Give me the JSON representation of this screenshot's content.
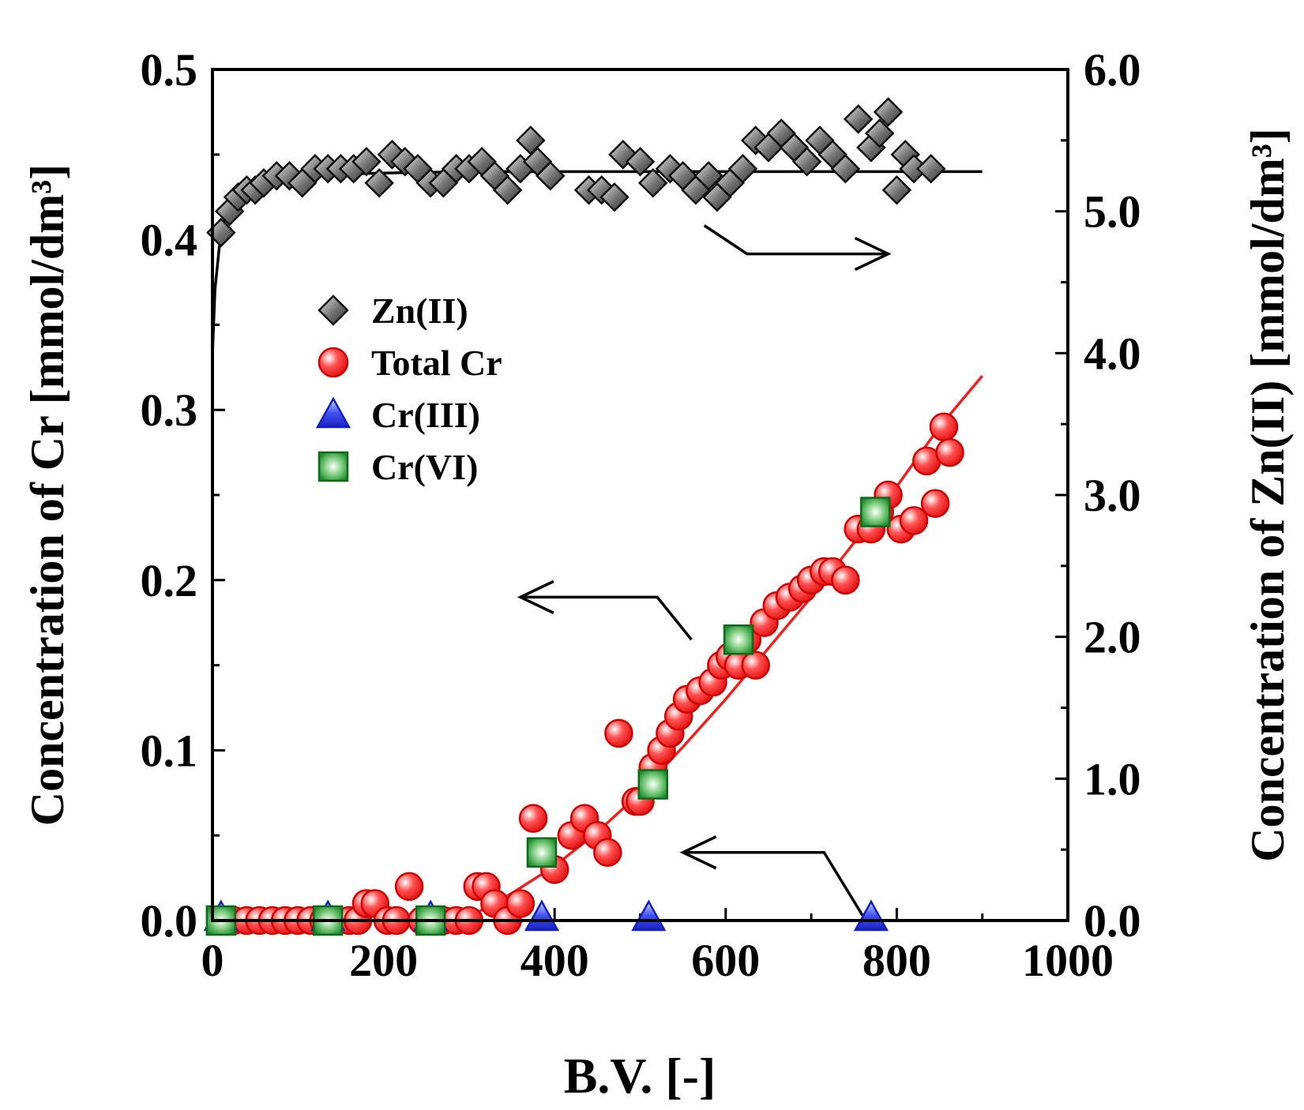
{
  "chart_data": {
    "type": "scatter",
    "xlabel": "B.V. [-]",
    "ylabel_left": "Concentration of Cr [mmol/dm³]",
    "ylabel_right": "Concentration of Zn(II) [mmol/dm³]",
    "xlim": [
      0,
      1000
    ],
    "ylim_left": [
      0,
      0.5
    ],
    "ylim_right": [
      0,
      6.0
    ],
    "x_ticks": [
      "0",
      "200",
      "400",
      "600",
      "800",
      "1000"
    ],
    "y_left_ticks": [
      "0.0",
      "0.1",
      "0.2",
      "0.3",
      "0.4",
      "0.5"
    ],
    "y_right_ticks": [
      "0.0",
      "1.0",
      "2.0",
      "3.0",
      "4.0",
      "5.0",
      "6.0"
    ],
    "grid": false,
    "legend_position": "upper-left",
    "colors": {
      "zn": "#555555",
      "total_cr": "#ee2222",
      "cr3": "#2233dd",
      "cr6": "#1a8a2a",
      "fit_cr": "#ee2222",
      "fit_zn": "#000000"
    },
    "series": [
      {
        "name": "Zn(II)",
        "axis": "right",
        "marker": "diamond",
        "x": [
          10,
          20,
          30,
          40,
          50,
          60,
          75,
          90,
          105,
          120,
          135,
          150,
          165,
          180,
          195,
          210,
          225,
          240,
          255,
          270,
          285,
          300,
          315,
          330,
          345,
          360,
          372,
          380,
          395,
          440,
          455,
          470,
          480,
          500,
          515,
          535,
          550,
          565,
          580,
          590,
          605,
          620,
          635,
          650,
          665,
          680,
          695,
          710,
          725,
          740,
          755,
          770,
          780,
          790,
          800,
          810,
          820,
          840
        ],
        "y": [
          4.85,
          5.0,
          5.1,
          5.15,
          5.15,
          5.2,
          5.25,
          5.25,
          5.2,
          5.3,
          5.3,
          5.3,
          5.3,
          5.35,
          5.2,
          5.4,
          5.35,
          5.3,
          5.2,
          5.2,
          5.3,
          5.3,
          5.35,
          5.25,
          5.15,
          5.3,
          5.5,
          5.35,
          5.25,
          5.15,
          5.15,
          5.1,
          5.4,
          5.35,
          5.2,
          5.3,
          5.25,
          5.15,
          5.25,
          5.1,
          5.2,
          5.3,
          5.5,
          5.45,
          5.55,
          5.45,
          5.35,
          5.5,
          5.4,
          5.3,
          5.65,
          5.45,
          5.55,
          5.7,
          5.15,
          5.4,
          5.3,
          5.3
        ]
      },
      {
        "name": "Total Cr",
        "axis": "left",
        "marker": "circle",
        "x": [
          10,
          25,
          40,
          55,
          70,
          85,
          100,
          115,
          130,
          145,
          160,
          170,
          180,
          190,
          205,
          215,
          230,
          245,
          255,
          270,
          285,
          300,
          310,
          320,
          330,
          345,
          360,
          375,
          385,
          400,
          420,
          435,
          450,
          462,
          475,
          495,
          500,
          515,
          525,
          535,
          545,
          555,
          570,
          585,
          595,
          605,
          615,
          625,
          635,
          645,
          660,
          675,
          690,
          700,
          715,
          725,
          740,
          755,
          770,
          780,
          790,
          805,
          820,
          835,
          845,
          855,
          862
        ],
        "y": [
          0.0,
          0.0,
          0.0,
          0.0,
          0.0,
          0.0,
          0.0,
          0.0,
          0.0,
          0.0,
          0.0,
          0.0,
          0.01,
          0.01,
          0.0,
          0.0,
          0.02,
          0.0,
          0.0,
          0.0,
          0.0,
          0.0,
          0.02,
          0.02,
          0.01,
          0.0,
          0.01,
          0.06,
          0.04,
          0.03,
          0.05,
          0.06,
          0.05,
          0.04,
          0.11,
          0.07,
          0.07,
          0.09,
          0.1,
          0.11,
          0.12,
          0.13,
          0.135,
          0.14,
          0.15,
          0.155,
          0.15,
          0.165,
          0.15,
          0.175,
          0.185,
          0.19,
          0.195,
          0.2,
          0.205,
          0.205,
          0.2,
          0.23,
          0.23,
          0.24,
          0.25,
          0.23,
          0.235,
          0.27,
          0.245,
          0.29,
          0.275
        ]
      },
      {
        "name": "Cr(III)",
        "axis": "left",
        "marker": "triangle",
        "x": [
          10,
          135,
          255,
          385,
          510,
          770
        ],
        "y": [
          0.0,
          0.0,
          0.0,
          0.0,
          0.0,
          0.0
        ]
      },
      {
        "name": "Cr(VI)",
        "axis": "left",
        "marker": "square",
        "x": [
          10,
          135,
          255,
          385,
          515,
          615,
          775
        ],
        "y": [
          0.0,
          0.0,
          0.0,
          0.04,
          0.08,
          0.165,
          0.24
        ]
      }
    ],
    "fit_lines": [
      {
        "name": "Total Cr fit",
        "axis": "left",
        "x": [
          0,
          280,
          300,
          350,
          400,
          450,
          500,
          550,
          600,
          650,
          700,
          750,
          800,
          850,
          900
        ],
        "y": [
          0.0,
          0.0,
          0.002,
          0.016,
          0.032,
          0.052,
          0.075,
          0.102,
          0.13,
          0.16,
          0.19,
          0.222,
          0.255,
          0.29,
          0.32
        ]
      },
      {
        "name": "Zn(II) fit",
        "axis": "right",
        "x": [
          0,
          3,
          8,
          15,
          25,
          40,
          60,
          90,
          130,
          200,
          300,
          500,
          700,
          900
        ],
        "y": [
          4.0,
          4.45,
          4.75,
          4.95,
          5.08,
          5.16,
          5.21,
          5.24,
          5.26,
          5.27,
          5.28,
          5.28,
          5.28,
          5.28
        ]
      }
    ],
    "annotation_arrows": [
      {
        "target": "right",
        "from": [
          575,
          4.9
        ],
        "mid": [
          625,
          4.7
        ],
        "to": [
          790,
          4.7
        ]
      },
      {
        "target": "left",
        "from": [
          560,
          0.165
        ],
        "mid": [
          520,
          0.19
        ],
        "to": [
          360,
          0.19
        ]
      },
      {
        "target": "left",
        "from": [
          760,
          0.003
        ],
        "mid": [
          715,
          0.04
        ],
        "to": [
          550,
          0.04
        ]
      }
    ]
  }
}
